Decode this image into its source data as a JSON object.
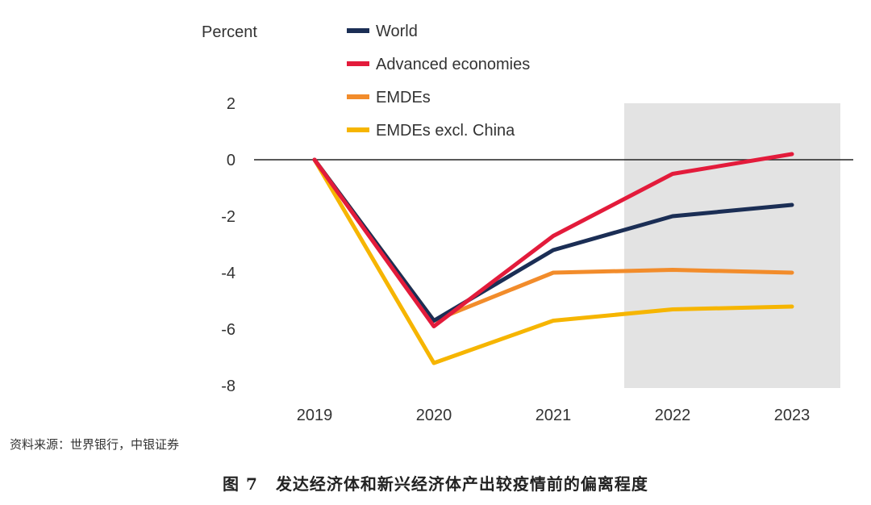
{
  "chart_data": {
    "type": "line",
    "ylabel": "Percent",
    "ylim": [
      -8,
      2
    ],
    "yticks": [
      "2",
      "0",
      "-2",
      "-4",
      "-6",
      "-8"
    ],
    "categories": [
      "2019",
      "2020",
      "2021",
      "2022",
      "2023"
    ],
    "shaded_categories": [
      "2022",
      "2023"
    ],
    "series": [
      {
        "name": "World",
        "color": "#1b2e55",
        "values": [
          0,
          -5.7,
          -3.2,
          -2.0,
          -1.6
        ]
      },
      {
        "name": "Advanced economies",
        "color": "#e31b3b",
        "values": [
          0,
          -5.9,
          -2.7,
          -0.5,
          0.2
        ]
      },
      {
        "name": "EMDEs",
        "color": "#f28c2b",
        "values": [
          0,
          -5.7,
          -4.0,
          -3.9,
          -4.0
        ]
      },
      {
        "name": "EMDEs excl. China",
        "color": "#f6b500",
        "values": [
          0,
          -7.2,
          -5.7,
          -5.3,
          -5.2
        ]
      }
    ]
  },
  "source": "资料来源：世界银行，中银证券",
  "caption": {
    "number": "图 7",
    "title": "发达经济体和新兴经济体产出较疫情前的偏离程度"
  }
}
